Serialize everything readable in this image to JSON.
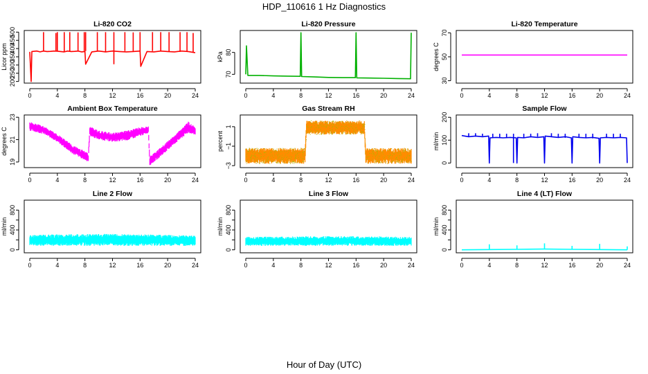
{
  "figure": {
    "title": "HDP_110616  1 Hz Diagnostics",
    "xlabel": "Hour of Day (UTC)"
  },
  "chart_data": [
    {
      "type": "line",
      "title": "Li-820 CO2",
      "ylabel": "Licor ppm",
      "color": "#ff0000",
      "xlim": [
        0,
        24
      ],
      "ylim": [
        190,
        510
      ],
      "xticks": [
        0,
        4,
        8,
        12,
        16,
        20,
        24
      ],
      "yticks": [
        200,
        250,
        300,
        350,
        400,
        450,
        500
      ],
      "yticklabels": [
        "200",
        "250",
        "300",
        "350",
        "400",
        "450",
        "500"
      ],
      "x": [
        0,
        0.2,
        0.3,
        1,
        1.5,
        2,
        2.5,
        3,
        3.5,
        4,
        4.5,
        5,
        5.5,
        6,
        6.5,
        7,
        7.5,
        8,
        8.1,
        9,
        10,
        11,
        12,
        13,
        14,
        15,
        16,
        16.1,
        17,
        18,
        19,
        20,
        21,
        22,
        23,
        24
      ],
      "y": [
        380,
        200,
        382,
        385,
        380,
        385,
        382,
        383,
        385,
        384,
        382,
        380,
        385,
        382,
        383,
        385,
        380,
        382,
        305,
        380,
        385,
        380,
        385,
        382,
        380,
        382,
        385,
        292,
        382,
        380,
        385,
        382,
        380,
        385,
        382,
        375
      ],
      "spikes_x": [
        2.0,
        3.8,
        4.0,
        5.0,
        5.8,
        7.0,
        7.9,
        8.1,
        9.8,
        11.0,
        12.2,
        13.8,
        15.0,
        16.0,
        17.8,
        19.0,
        20.2,
        21.8,
        22.8,
        23.7
      ],
      "spikes_y": [
        500,
        495,
        500,
        500,
        500,
        498,
        500,
        500,
        500,
        500,
        500,
        500,
        498,
        500,
        500,
        500,
        500,
        500,
        500,
        495
      ]
    },
    {
      "type": "line",
      "title": "Li-820 Pressure",
      "ylabel": "kPa",
      "color": "#00b000",
      "xlim": [
        0,
        24
      ],
      "ylim": [
        66,
        90
      ],
      "xticks": [
        0,
        4,
        8,
        12,
        16,
        20,
        24
      ],
      "yticks": [
        70,
        80
      ],
      "yticklabels": [
        "70",
        "80"
      ],
      "x": [
        0,
        0.1,
        0.3,
        2,
        4,
        6,
        7.9,
        8.0,
        8.1,
        10,
        12,
        14,
        15.9,
        16.0,
        16.1,
        18,
        20,
        22,
        23.9,
        24.0
      ],
      "y": [
        70,
        83,
        69.5,
        69.5,
        69.3,
        69.2,
        69.1,
        89,
        69.0,
        68.8,
        68.6,
        68.5,
        68.5,
        89,
        68.4,
        68.3,
        68.2,
        68.1,
        68.0,
        89
      ]
    },
    {
      "type": "line",
      "title": "Li-820 Temperature",
      "ylabel": "degrees C",
      "color": "#ff00ff",
      "xlim": [
        0,
        24
      ],
      "ylim": [
        28,
        72
      ],
      "xticks": [
        0,
        4,
        8,
        12,
        16,
        20,
        24
      ],
      "yticks": [
        30,
        50,
        70
      ],
      "yticklabels": [
        "30",
        "50",
        "70"
      ],
      "x": [
        0,
        24
      ],
      "y": [
        51.5,
        51.5
      ]
    },
    {
      "type": "area",
      "title": "Ambient Box Temperature",
      "ylabel": "degrees C",
      "color": "#ff00ff",
      "xlim": [
        0,
        24
      ],
      "ylim": [
        18.5,
        23.2
      ],
      "xticks": [
        0,
        4,
        8,
        12,
        16,
        20,
        24
      ],
      "yticks": [
        19,
        21,
        23
      ],
      "yticklabels": [
        "19",
        "21",
        "23"
      ],
      "x": [
        0,
        2,
        4,
        6,
        8.5,
        8.7,
        10,
        12,
        14,
        16,
        17.2,
        17.4,
        19,
        21,
        23,
        24
      ],
      "y_low": [
        21.8,
        21.5,
        20.8,
        19.8,
        19.0,
        21.3,
        21.0,
        20.8,
        20.9,
        21.3,
        21.6,
        18.7,
        19.5,
        20.6,
        21.6,
        21.4
      ],
      "y_high": [
        22.6,
        22.2,
        21.5,
        20.6,
        19.8,
        22.2,
        21.8,
        21.6,
        21.8,
        22.1,
        22.2,
        19.5,
        20.3,
        21.4,
        22.6,
        22.1
      ]
    },
    {
      "type": "area",
      "title": "Gas Stream RH",
      "ylabel": "percent",
      "color": "#ff8c00",
      "dot_color": "#b8b000",
      "xlim": [
        0,
        24
      ],
      "ylim": [
        -3.2,
        2.2
      ],
      "xticks": [
        0,
        4,
        8,
        12,
        16,
        20,
        24
      ],
      "yticks": [
        -3,
        -1,
        1
      ],
      "yticklabels": [
        "−3",
        "−1",
        "1"
      ],
      "x": [
        0,
        8.6,
        8.8,
        17.2,
        17.4,
        24
      ],
      "y_low": [
        -2.8,
        -2.8,
        0.2,
        0.2,
        -2.8,
        -2.8
      ],
      "y_high": [
        -1.2,
        -1.2,
        1.6,
        1.6,
        -1.2,
        -1.2
      ]
    },
    {
      "type": "line",
      "title": "Sample Flow",
      "ylabel": "ml/min",
      "color": "#0000ee",
      "xlim": [
        0,
        24
      ],
      "ylim": [
        -20,
        210
      ],
      "xticks": [
        0,
        4,
        8,
        12,
        16,
        20,
        24
      ],
      "yticks": [
        0,
        100,
        200
      ],
      "yticklabels": [
        "0",
        "100",
        "200"
      ],
      "x": [
        0,
        1,
        2,
        3,
        3.9,
        4.0,
        4.1,
        5,
        6,
        7,
        7.9,
        8.0,
        8.1,
        9,
        10,
        11,
        11.9,
        12.0,
        12.1,
        13,
        14,
        15,
        15.9,
        16.0,
        16.1,
        17,
        18,
        19,
        19.9,
        20.0,
        20.1,
        21,
        22,
        23,
        23.9,
        24.0
      ],
      "y": [
        120,
        115,
        118,
        115,
        118,
        0,
        110,
        112,
        110,
        112,
        110,
        0,
        112,
        110,
        115,
        112,
        115,
        0,
        118,
        115,
        112,
        115,
        110,
        0,
        115,
        112,
        110,
        112,
        108,
        0,
        110,
        112,
        110,
        112,
        110,
        0
      ],
      "spikes_x": [
        1,
        2,
        3,
        4.5,
        5.5,
        6.5,
        7.5,
        9,
        10,
        11,
        13,
        14,
        15,
        17,
        18,
        19,
        21,
        22,
        23
      ],
      "spikes_y": [
        130,
        130,
        128,
        128,
        128,
        128,
        128,
        128,
        128,
        130,
        130,
        128,
        128,
        128,
        128,
        128,
        128,
        128,
        128
      ]
    },
    {
      "type": "area",
      "title": "Line 2 Flow",
      "ylabel": "ml/min",
      "color": "#00ffff",
      "xlim": [
        0,
        24
      ],
      "ylim": [
        -60,
        1000
      ],
      "xticks": [
        0,
        4,
        8,
        12,
        16,
        20,
        24
      ],
      "yticks": [
        0,
        200,
        400,
        600,
        800
      ],
      "yticklabels": [
        "0",
        "400",
        "800"
      ],
      "x": [
        0,
        4,
        8,
        12,
        16,
        20,
        24
      ],
      "y_low": [
        80,
        80,
        80,
        80,
        80,
        80,
        80
      ],
      "y_high": [
        300,
        310,
        320,
        320,
        310,
        300,
        290
      ]
    },
    {
      "type": "area",
      "title": "Line 3 Flow",
      "ylabel": "ml/min",
      "color": "#00ffff",
      "xlim": [
        0,
        24
      ],
      "ylim": [
        -60,
        1000
      ],
      "xticks": [
        0,
        4,
        8,
        12,
        16,
        20,
        24
      ],
      "yticks": [
        0,
        200,
        400,
        600,
        800
      ],
      "yticklabels": [
        "0",
        "400",
        "800"
      ],
      "x": [
        0,
        4,
        8,
        12,
        16,
        20,
        24
      ],
      "y_low": [
        80,
        80,
        80,
        80,
        80,
        80,
        80
      ],
      "y_high": [
        260,
        265,
        270,
        280,
        275,
        270,
        260
      ]
    },
    {
      "type": "line",
      "title": "Line 4 (LT) Flow",
      "ylabel": "ml/min",
      "color": "#00ffff",
      "xlim": [
        0,
        24
      ],
      "ylim": [
        -60,
        1000
      ],
      "xticks": [
        0,
        4,
        8,
        12,
        16,
        20,
        24
      ],
      "yticks": [
        0,
        200,
        400,
        600,
        800
      ],
      "yticklabels": [
        "0",
        "400",
        "800"
      ],
      "x": [
        0,
        4,
        8,
        12,
        16,
        20,
        24
      ],
      "y": [
        0,
        5,
        10,
        15,
        10,
        5,
        0
      ],
      "spikes_x": [
        4,
        8,
        12,
        16,
        20,
        24
      ],
      "spikes_y": [
        110,
        90,
        130,
        80,
        120,
        70
      ]
    }
  ]
}
